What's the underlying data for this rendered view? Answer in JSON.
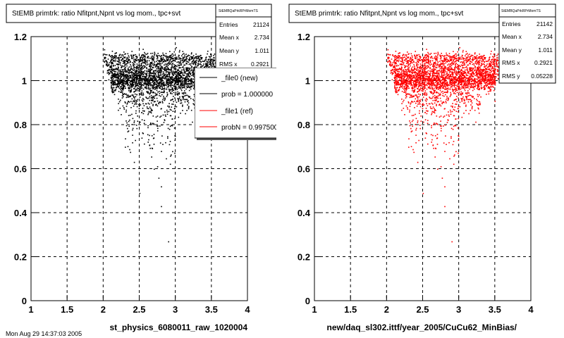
{
  "panels": [
    {
      "title": "StEMB primtrk: ratio Nfitpnt,Npnt vs log mom., tpc+svt",
      "stats": {
        "header": "StEMBQaPrkRPrMomTS",
        "rows": [
          {
            "label": "Entries",
            "value": "21124"
          },
          {
            "label": "Mean x",
            "value": "2.734"
          },
          {
            "label": "Mean y",
            "value": "1.011"
          },
          {
            "label": "RMS x",
            "value": "0.2921"
          }
        ]
      },
      "legend": [
        {
          "label": "_file0 (new)",
          "color": "#000000"
        },
        {
          "label": "prob = 1.000000",
          "color": "#000000"
        },
        {
          "label": "_file1 (ref)",
          "color": "#ff0000"
        },
        {
          "label": "probN = 0.997500",
          "color": "#ff0000"
        }
      ],
      "xlabel": "st_physics_6080011_raw_1020004",
      "marker_color": "#000000"
    },
    {
      "title": "StEMB primtrk: ratio Nfitpnt,Npnt vs log mom., tpc+svt",
      "stats": {
        "header": "StEMBQaPrkRPrMomTS",
        "rows": [
          {
            "label": "Entries",
            "value": "21142"
          },
          {
            "label": "Mean x",
            "value": "2.734"
          },
          {
            "label": "Mean y",
            "value": "1.011"
          },
          {
            "label": "RMS x",
            "value": "0.2921"
          },
          {
            "label": "RMS y",
            "value": "0.05228"
          }
        ]
      },
      "legend": [],
      "xlabel": "new/daq_sl302.ittf/year_2005/CuCu62_MinBias/",
      "marker_color": "#ff0000"
    }
  ],
  "footer": "Mon Aug 29 14:37:03 2005",
  "chart_data": [
    {
      "type": "scatter",
      "title": "StEMB primtrk: ratio Nfitpnt,Npnt vs log mom., tpc+svt",
      "xlabel": "st_physics_6080011_raw_1020004",
      "ylabel": "",
      "xlim": [
        1,
        4
      ],
      "ylim": [
        0,
        1.2
      ],
      "x_ticks": [
        "1",
        "1.5",
        "2",
        "2.5",
        "3",
        "3.5",
        "4"
      ],
      "y_ticks": [
        "0",
        "0.2",
        "0.4",
        "0.6",
        "0.8",
        "1",
        "1.2"
      ],
      "grid": true,
      "entries": 21124,
      "mean_x": 2.734,
      "mean_y": 1.011,
      "rms_x": 0.2921,
      "color": "#000000",
      "bands": [
        {
          "y": 1.1,
          "x_range": [
            2.0,
            3.8
          ],
          "weight": 0.18,
          "spread": 0.015
        },
        {
          "y": 1.05,
          "x_range": [
            2.05,
            3.6
          ],
          "weight": 0.22,
          "spread": 0.02
        },
        {
          "y": 1.0,
          "x_range": [
            2.1,
            3.5
          ],
          "weight": 0.45,
          "spread": 0.025
        },
        {
          "y": 0.92,
          "x_range": [
            2.2,
            3.3
          ],
          "weight": 0.1,
          "spread": 0.04
        },
        {
          "y": 0.8,
          "x_range": [
            2.3,
            3.0
          ],
          "weight": 0.04,
          "spread": 0.08
        }
      ],
      "outliers": [
        [
          2.5,
          0.49
        ],
        [
          2.8,
          0.52
        ],
        [
          2.9,
          0.27
        ],
        [
          2.3,
          0.7
        ],
        [
          2.7,
          0.6
        ],
        [
          2.4,
          0.72
        ],
        [
          2.8,
          0.43
        ]
      ]
    },
    {
      "type": "scatter",
      "title": "StEMB primtrk: ratio Nfitpnt,Npnt vs log mom., tpc+svt",
      "xlabel": "new/daq_sl302.ittf/year_2005/CuCu62_MinBias/",
      "ylabel": "",
      "xlim": [
        1,
        4
      ],
      "ylim": [
        0,
        1.2
      ],
      "x_ticks": [
        "1",
        "1.5",
        "2",
        "2.5",
        "3",
        "3.5",
        "4"
      ],
      "y_ticks": [
        "0",
        "0.2",
        "0.4",
        "0.6",
        "0.8",
        "1",
        "1.2"
      ],
      "grid": true,
      "entries": 21142,
      "mean_x": 2.734,
      "mean_y": 1.011,
      "rms_x": 0.2921,
      "rms_y": 0.05228,
      "color": "#ff0000",
      "bands": [
        {
          "y": 1.1,
          "x_range": [
            2.0,
            3.8
          ],
          "weight": 0.18,
          "spread": 0.015
        },
        {
          "y": 1.05,
          "x_range": [
            2.05,
            3.6
          ],
          "weight": 0.22,
          "spread": 0.02
        },
        {
          "y": 1.0,
          "x_range": [
            2.1,
            3.5
          ],
          "weight": 0.45,
          "spread": 0.025
        },
        {
          "y": 0.92,
          "x_range": [
            2.2,
            3.3
          ],
          "weight": 0.1,
          "spread": 0.04
        },
        {
          "y": 0.8,
          "x_range": [
            2.3,
            3.0
          ],
          "weight": 0.04,
          "spread": 0.08
        }
      ],
      "outliers": [
        [
          2.5,
          0.49
        ],
        [
          2.8,
          0.52
        ],
        [
          2.9,
          0.27
        ],
        [
          2.3,
          0.7
        ],
        [
          2.7,
          0.6
        ],
        [
          2.4,
          0.72
        ],
        [
          2.8,
          0.43
        ]
      ]
    }
  ]
}
